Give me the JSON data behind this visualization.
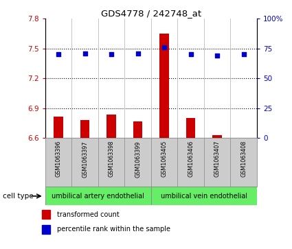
{
  "title": "GDS4778 / 242748_at",
  "samples": [
    "GSM1063396",
    "GSM1063397",
    "GSM1063398",
    "GSM1063399",
    "GSM1063405",
    "GSM1063406",
    "GSM1063407",
    "GSM1063408"
  ],
  "transformed_counts": [
    6.82,
    6.78,
    6.84,
    6.77,
    7.65,
    6.8,
    6.63,
    6.6
  ],
  "percentile_ranks": [
    70,
    71,
    70,
    71,
    76,
    70,
    69,
    70
  ],
  "ylim_left": [
    6.6,
    7.8
  ],
  "ylim_right": [
    0,
    100
  ],
  "yticks_left": [
    6.6,
    6.9,
    7.2,
    7.5,
    7.8
  ],
  "yticks_right": [
    0,
    25,
    50,
    75,
    100
  ],
  "ytick_labels_left": [
    "6.6",
    "6.9",
    "7.2",
    "7.5",
    "7.8"
  ],
  "ytick_labels_right": [
    "0",
    "25",
    "50",
    "75",
    "100%"
  ],
  "bar_color": "#cc0000",
  "dot_color": "#0000cc",
  "bar_bottom": 6.6,
  "cell_types": [
    {
      "label": "umbilical artery endothelial",
      "color": "#66ee66"
    },
    {
      "label": "umbilical vein endothelial",
      "color": "#66ee66"
    }
  ],
  "legend_bar_label": "transformed count",
  "legend_dot_label": "percentile rank within the sample",
  "background_color": "#ffffff",
  "plot_bg_color": "#ffffff",
  "grid_color": "#000000",
  "tick_color_left": "#cc0000",
  "tick_color_right": "#0000cc",
  "xlabel_area_color": "#cccccc",
  "cell_type_label": "cell type"
}
